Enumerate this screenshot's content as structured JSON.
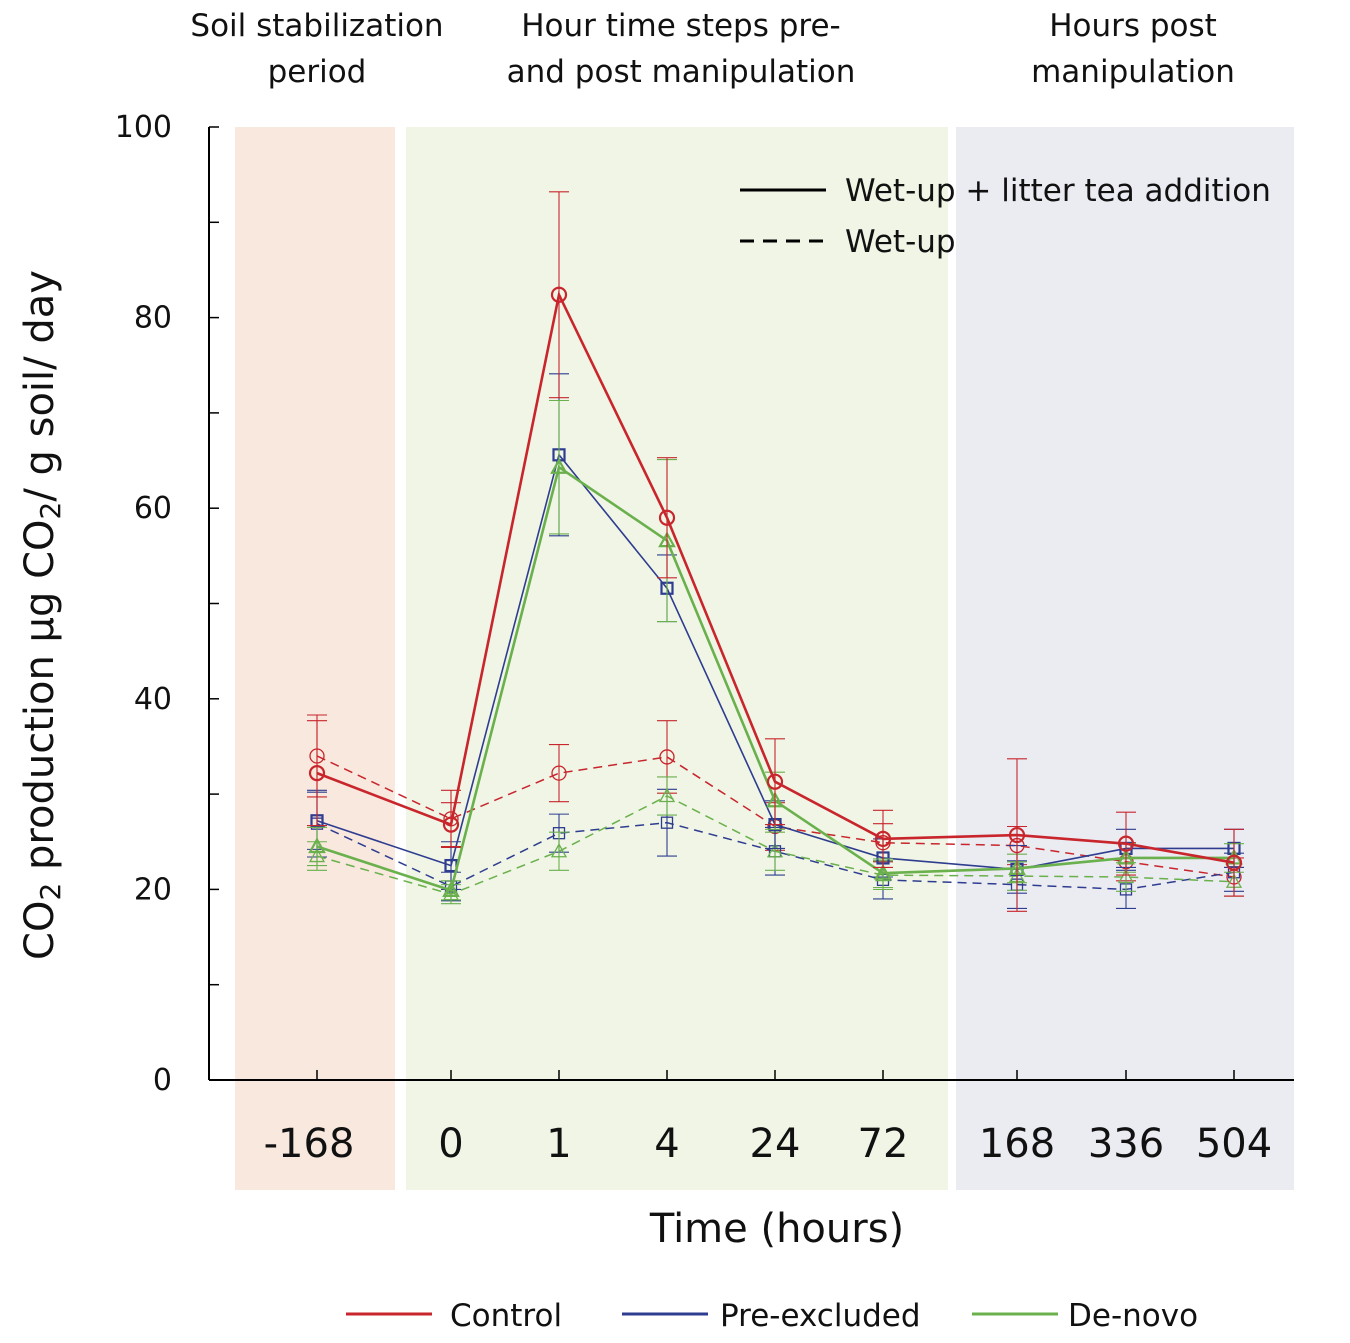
{
  "chart_data": {
    "type": "line",
    "title": "",
    "xlabel": "Time (hours)",
    "ylabel_parts": [
      "CO",
      "2",
      " production µg CO",
      "2",
      "/ g soil/ day"
    ],
    "ylim": [
      0,
      100
    ],
    "yticks": [
      0,
      20,
      40,
      60,
      80,
      100
    ],
    "yticks_minor": [
      10,
      30,
      50,
      70,
      90
    ],
    "categories": [
      "-168",
      "0",
      "1",
      "4",
      "24",
      "72",
      "168",
      "336",
      "504"
    ],
    "periods": [
      {
        "title_lines": [
          "Soil stabilization",
          "period"
        ],
        "color": "#f8e8de"
      },
      {
        "title_lines": [
          "Hour time steps pre-",
          "and post manipulation"
        ],
        "color": "#f0f5e6"
      },
      {
        "title_lines": [
          "Hours post",
          "manipulation"
        ],
        "color": "#ebebf2"
      }
    ],
    "line_style_legend": [
      {
        "label": "Wet-up + litter tea addition",
        "style": "solid"
      },
      {
        "label": "Wet-up",
        "style": "dashed"
      }
    ],
    "series": [
      {
        "name": "Control",
        "color": "#c8262c",
        "marker": "circle",
        "style": "solid",
        "values": [
          32.2,
          26.8,
          82.4,
          59.0,
          31.3,
          25.3,
          25.7,
          24.8,
          22.8
        ],
        "errors": [
          5.5,
          2.3,
          10.8,
          6.3,
          4.5,
          3.0,
          8.0,
          3.3,
          3.5
        ]
      },
      {
        "name": "Pre-excluded",
        "color": "#2e3d8f",
        "marker": "square",
        "style": "solid",
        "values": [
          27.2,
          22.5,
          65.6,
          51.6,
          26.8,
          23.3,
          22.1,
          24.3,
          24.3
        ],
        "errors": [
          3.0,
          2.5,
          8.5,
          3.5,
          2.5,
          2.0,
          2.5,
          2.0,
          2.0
        ]
      },
      {
        "name": "De-novo",
        "color": "#6ab04c",
        "marker": "triangle",
        "style": "solid",
        "values": [
          24.5,
          19.9,
          64.3,
          56.6,
          29.3,
          21.7,
          22.2,
          23.3,
          23.3
        ],
        "errors": [
          2.0,
          1.0,
          7.0,
          8.5,
          3.0,
          1.5,
          1.5,
          1.5,
          1.5
        ]
      },
      {
        "name": "Control",
        "color": "#c8262c",
        "marker": "circle",
        "style": "dashed",
        "values": [
          34.0,
          27.4,
          32.2,
          33.9,
          26.6,
          24.9,
          24.6,
          22.9,
          21.3
        ],
        "errors": [
          4.3,
          3.0,
          3.0,
          3.8,
          2.5,
          2.0,
          2.0,
          2.0,
          2.0
        ]
      },
      {
        "name": "Pre-excluded",
        "color": "#2e3d8f",
        "marker": "square",
        "style": "dashed",
        "values": [
          26.9,
          20.3,
          25.9,
          27.0,
          24.0,
          21.0,
          20.5,
          20.0,
          21.8
        ],
        "errors": [
          3.5,
          1.5,
          2.0,
          3.5,
          2.5,
          2.0,
          2.5,
          2.0,
          2.0
        ]
      },
      {
        "name": "De-novo",
        "color": "#6ab04c",
        "marker": "triangle",
        "style": "dashed",
        "values": [
          23.5,
          19.5,
          24.0,
          29.8,
          24.0,
          21.5,
          21.4,
          21.3,
          20.8
        ],
        "errors": [
          1.5,
          1.0,
          2.0,
          2.0,
          2.0,
          1.5,
          1.5,
          1.5,
          1.5
        ]
      }
    ],
    "legend": [
      {
        "label": "Control",
        "color": "#c8262c"
      },
      {
        "label": "Pre-excluded",
        "color": "#2e3d8f"
      },
      {
        "label": "De-novo",
        "color": "#6ab04c"
      }
    ]
  }
}
